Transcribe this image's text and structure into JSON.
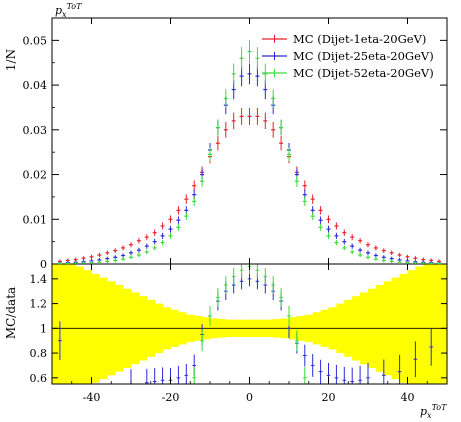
{
  "chart_data": [
    {
      "type": "scatter",
      "panel": "main",
      "title": "",
      "ylabel_top": "p_x^{ToT}",
      "ylabel": "1/N",
      "xlim": [
        -50,
        50
      ],
      "ylim": [
        0,
        0.055
      ],
      "yticks": [
        0,
        0.01,
        0.02,
        0.03,
        0.04,
        0.05
      ],
      "yticklabels": [
        "0",
        "0.01",
        "0.02",
        "0.03",
        "0.04",
        "0.05"
      ],
      "legend_position": "top-right",
      "x": [
        -48,
        -46,
        -44,
        -42,
        -40,
        -38,
        -36,
        -34,
        -32,
        -30,
        -28,
        -26,
        -24,
        -22,
        -20,
        -18,
        -16,
        -14,
        -12,
        -10,
        -8,
        -6,
        -4,
        -2,
        0,
        2,
        4,
        6,
        8,
        10,
        12,
        14,
        16,
        18,
        20,
        22,
        24,
        26,
        28,
        30,
        32,
        34,
        36,
        38,
        40,
        42,
        44,
        46,
        48
      ],
      "series": [
        {
          "name": "MC (Dijet-1eta-20GeV)",
          "color": "#e8202a",
          "values": [
            0.0006,
            0.0008,
            0.001,
            0.0013,
            0.0016,
            0.002,
            0.0025,
            0.003,
            0.0036,
            0.0043,
            0.0052,
            0.006,
            0.007,
            0.0085,
            0.01,
            0.012,
            0.0145,
            0.0175,
            0.0205,
            0.024,
            0.027,
            0.03,
            0.032,
            0.033,
            0.033,
            0.033,
            0.032,
            0.03,
            0.027,
            0.024,
            0.0205,
            0.0175,
            0.0145,
            0.012,
            0.01,
            0.0085,
            0.007,
            0.006,
            0.0052,
            0.0043,
            0.0036,
            0.003,
            0.0025,
            0.002,
            0.0016,
            0.0013,
            0.001,
            0.0008,
            0.0006
          ]
        },
        {
          "name": "MC (Dijet-25eta-20GeV)",
          "color": "#2a2ad8",
          "values": [
            0.0002,
            0.0003,
            0.0004,
            0.0005,
            0.0007,
            0.0009,
            0.0012,
            0.0015,
            0.0019,
            0.0025,
            0.0031,
            0.004,
            0.005,
            0.0063,
            0.0078,
            0.0098,
            0.012,
            0.0155,
            0.02,
            0.0255,
            0.0305,
            0.0355,
            0.039,
            0.042,
            0.0425,
            0.042,
            0.039,
            0.0355,
            0.0305,
            0.0255,
            0.02,
            0.0155,
            0.012,
            0.0098,
            0.0078,
            0.0063,
            0.005,
            0.004,
            0.0031,
            0.0025,
            0.0019,
            0.0015,
            0.0012,
            0.0009,
            0.0007,
            0.0005,
            0.0004,
            0.0003,
            0.0002
          ]
        },
        {
          "name": "MC (Dijet-52eta-20GeV)",
          "color": "#3adc3a",
          "values": [
            0.0001,
            0.0001,
            0.0002,
            0.0002,
            0.0003,
            0.0004,
            0.0006,
            0.0008,
            0.0011,
            0.0015,
            0.002,
            0.0027,
            0.0036,
            0.0048,
            0.0063,
            0.0082,
            0.0107,
            0.014,
            0.0185,
            0.0245,
            0.0305,
            0.037,
            0.0425,
            0.046,
            0.0475,
            0.046,
            0.0425,
            0.037,
            0.0305,
            0.0245,
            0.0185,
            0.014,
            0.0107,
            0.0082,
            0.0063,
            0.0048,
            0.0036,
            0.0027,
            0.002,
            0.0015,
            0.0011,
            0.0008,
            0.0006,
            0.0004,
            0.0003,
            0.0002,
            0.0002,
            0.0001,
            0.0001
          ]
        }
      ]
    },
    {
      "type": "scatter",
      "panel": "ratio",
      "ylabel": "MC/data",
      "xlabel": "p_x^{ToT}",
      "xlim": [
        -50,
        50
      ],
      "ylim": [
        0.55,
        1.52
      ],
      "xticks": [
        -40,
        -20,
        0,
        20,
        40
      ],
      "xticklabels": [
        "-40",
        "-20",
        "0",
        "20",
        "40"
      ],
      "yticks": [
        0.6,
        0.8,
        1,
        1.2,
        1.4
      ],
      "yticklabels": [
        "0.6",
        "0.8",
        "1",
        "1.2",
        "1.4"
      ],
      "reference_line": 1,
      "band_color": "#ffff00",
      "band_x": [
        -49,
        -47,
        -45,
        -43,
        -41,
        -39,
        -37,
        -35,
        -33,
        -31,
        -29,
        -27,
        -25,
        -23,
        -21,
        -19,
        -17,
        -15,
        -13,
        -11,
        -9,
        -7,
        -5,
        -3,
        -1,
        1,
        3,
        5,
        7,
        9,
        11,
        13,
        15,
        17,
        19,
        21,
        23,
        25,
        27,
        29,
        31,
        33,
        35,
        37,
        39,
        41,
        43,
        45,
        47,
        49
      ],
      "band_half_width": [
        0.7,
        0.6,
        0.55,
        0.5,
        0.47,
        0.44,
        0.41,
        0.38,
        0.35,
        0.32,
        0.29,
        0.26,
        0.23,
        0.2,
        0.17,
        0.15,
        0.13,
        0.11,
        0.1,
        0.09,
        0.08,
        0.075,
        0.07,
        0.07,
        0.07,
        0.07,
        0.07,
        0.07,
        0.075,
        0.08,
        0.09,
        0.1,
        0.11,
        0.13,
        0.15,
        0.17,
        0.2,
        0.23,
        0.26,
        0.29,
        0.32,
        0.35,
        0.38,
        0.41,
        0.44,
        0.47,
        0.5,
        0.55,
        0.6,
        0.7
      ],
      "series": [
        {
          "name": "MC (Dijet-25eta-20GeV)",
          "color": "#2a2ad8",
          "x": [
            -48,
            -30,
            -26,
            -24,
            -22,
            -20,
            -18,
            -16,
            -14,
            -12,
            -10,
            -8,
            -6,
            -4,
            -2,
            0,
            2,
            4,
            6,
            8,
            10,
            12,
            14,
            16,
            18,
            20,
            22,
            24,
            26,
            28,
            30,
            34,
            38,
            42,
            46
          ],
          "values": [
            0.9,
            0.55,
            0.56,
            0.57,
            0.58,
            0.58,
            0.6,
            0.62,
            0.7,
            0.95,
            1.1,
            1.22,
            1.3,
            1.35,
            1.38,
            1.4,
            1.38,
            1.35,
            1.3,
            1.22,
            1.0,
            0.88,
            0.78,
            0.7,
            0.65,
            0.62,
            0.6,
            0.58,
            0.57,
            0.58,
            0.6,
            0.62,
            0.65,
            0.75,
            0.85
          ]
        },
        {
          "name": "MC (Dijet-52eta-20GeV)",
          "color": "#3adc3a",
          "x": [
            -14,
            -12,
            -10,
            -8,
            -6,
            -4,
            -2,
            0,
            2,
            4,
            6,
            8,
            10,
            12,
            14
          ],
          "values": [
            0.6,
            0.9,
            1.1,
            1.25,
            1.35,
            1.42,
            1.47,
            1.5,
            1.47,
            1.42,
            1.35,
            1.25,
            1.1,
            0.9,
            0.6
          ]
        }
      ]
    }
  ]
}
